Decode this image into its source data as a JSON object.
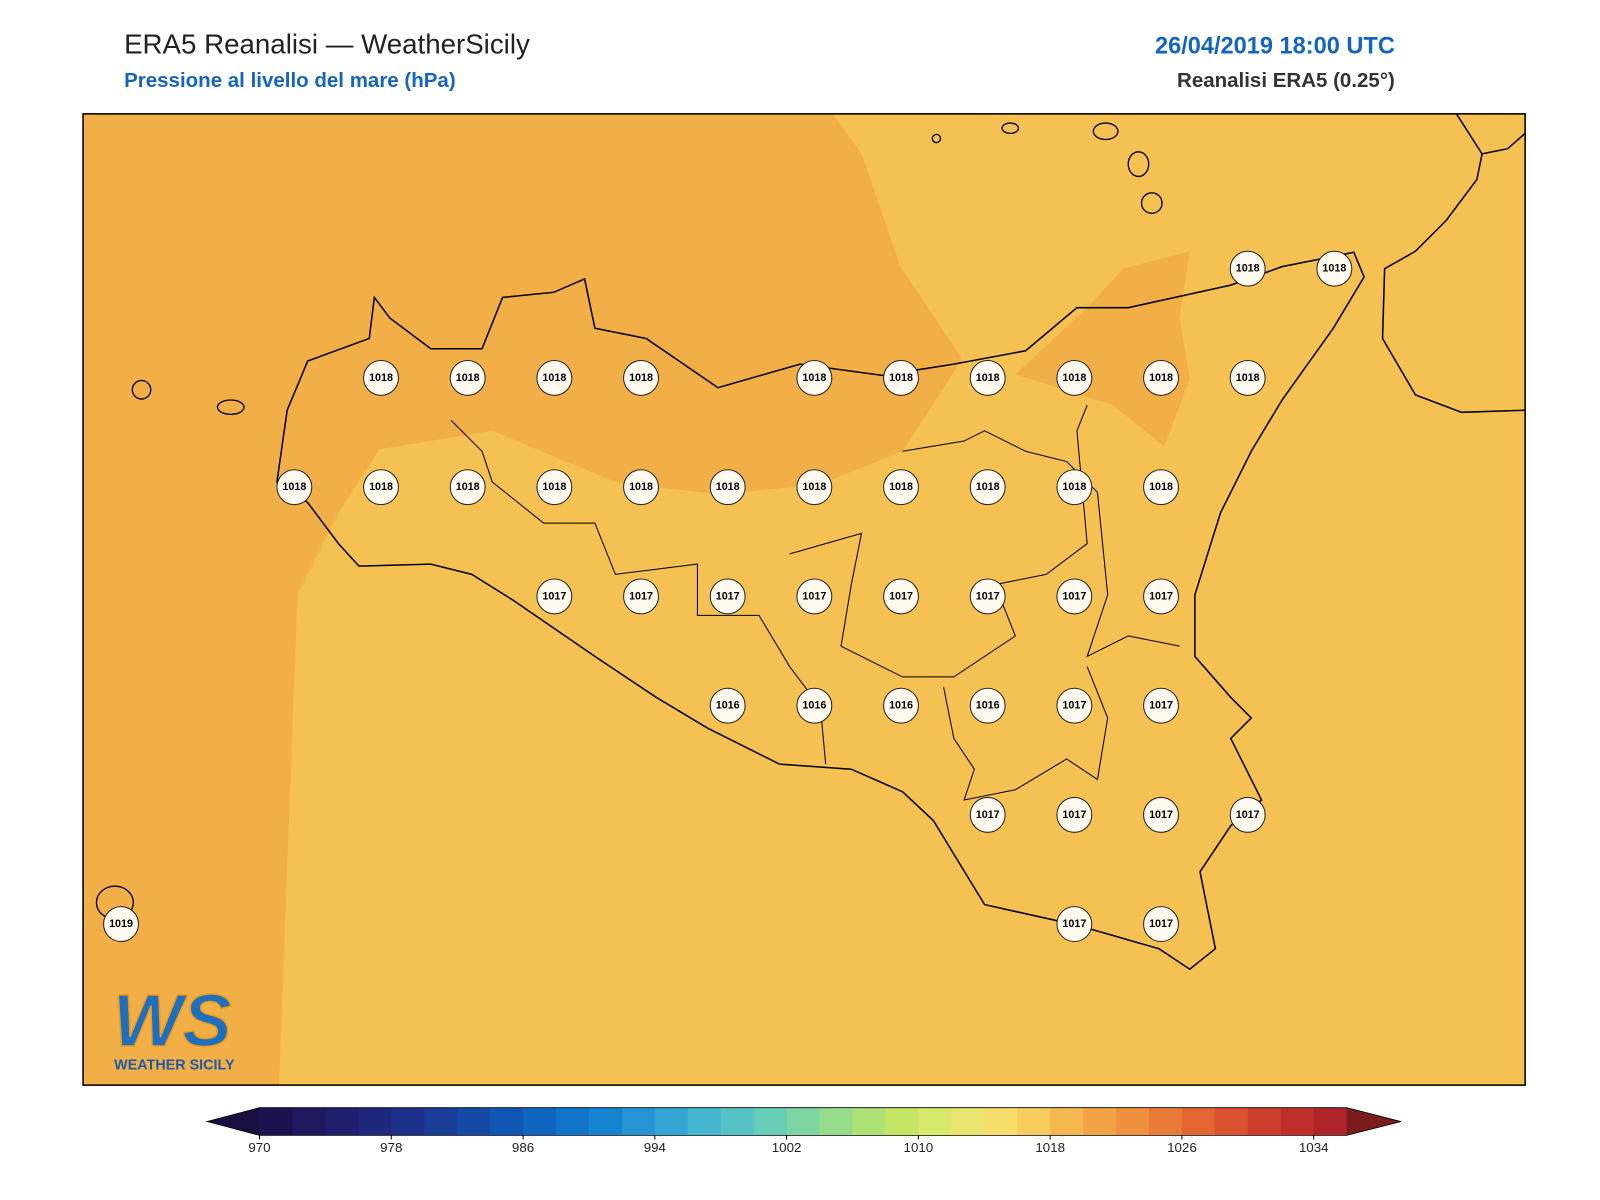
{
  "header": {
    "title": "ERA5 Reanalisi — WeatherSicily",
    "subtitle": "Pressione al livello del mare (hPa)",
    "datetime": "26/04/2019 18:00 UTC",
    "source": "Reanalisi ERA5 (0.25°)"
  },
  "logo": {
    "mark": "WS",
    "name": "WEATHER SICILY"
  },
  "stations": {
    "rows": [
      [
        null,
        null,
        null,
        null,
        null,
        null,
        null,
        null,
        null,
        null,
        null,
        null,
        null,
        1018,
        1018
      ],
      [
        null,
        null,
        null,
        1018,
        1018,
        1018,
        1018,
        null,
        1018,
        1018,
        1018,
        1018,
        1018,
        1018,
        null
      ],
      [
        null,
        null,
        1018,
        1018,
        1018,
        1018,
        1018,
        1018,
        1018,
        1018,
        1018,
        1018,
        1018,
        null,
        null
      ],
      [
        null,
        null,
        null,
        null,
        null,
        1017,
        1017,
        1017,
        1017,
        1017,
        1017,
        1017,
        1017,
        null,
        null
      ],
      [
        null,
        null,
        null,
        null,
        null,
        null,
        null,
        1016,
        1016,
        1016,
        1016,
        1017,
        1017,
        null,
        null
      ],
      [
        null,
        null,
        null,
        null,
        null,
        null,
        null,
        null,
        null,
        null,
        1017,
        1017,
        1017,
        1017,
        null
      ],
      [
        1019,
        null,
        null,
        null,
        null,
        null,
        null,
        null,
        null,
        null,
        null,
        1017,
        1017,
        null,
        null
      ]
    ]
  },
  "colorbar": {
    "lim": [
      970,
      1036
    ],
    "ticks": [
      970,
      978,
      986,
      994,
      1002,
      1010,
      1018,
      1026,
      1034
    ],
    "colors": [
      "#1d1150",
      "#1e185e",
      "#1f1f6d",
      "#1f277c",
      "#1d308a",
      "#1a3d98",
      "#1549a6",
      "#1156b3",
      "#0f64bf",
      "#1074c9",
      "#1584d1",
      "#2494d5",
      "#33a6d5",
      "#44b6d0",
      "#55c3c6",
      "#67cdb7",
      "#7dd5a2",
      "#95dc8b",
      "#aee275",
      "#c5e565",
      "#d8e868",
      "#e9e670",
      "#f7de6a",
      "#f8cd5d",
      "#f5b84f",
      "#f2a444",
      "#ee903e",
      "#e97a37",
      "#e36532",
      "#d9512e",
      "#cd3e2c",
      "#bf2e2b",
      "#ad2429"
    ],
    "under": "#1a0d40",
    "over": "#7a1c1c"
  }
}
